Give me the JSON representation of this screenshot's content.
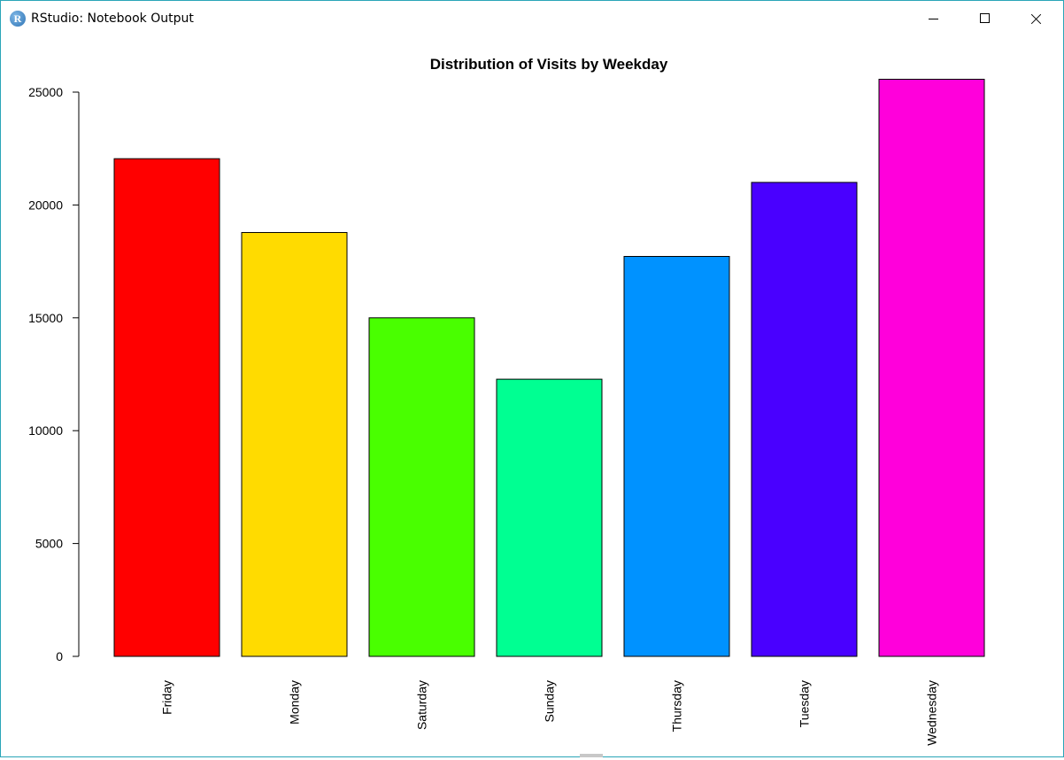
{
  "window": {
    "title": "RStudio: Notebook Output",
    "app_icon_letter": "R"
  },
  "chart_data": {
    "type": "bar",
    "title": "Distribution of Visits by Weekday",
    "xlabel": "",
    "ylabel": "",
    "categories": [
      "Friday",
      "Monday",
      "Saturday",
      "Sunday",
      "Thursday",
      "Tuesday",
      "Wednesday"
    ],
    "values": [
      22050,
      18780,
      15000,
      12280,
      17720,
      21000,
      25570
    ],
    "colors": [
      "#ff0000",
      "#ffdb00",
      "#49ff00",
      "#00ff92",
      "#0092ff",
      "#4900ff",
      "#ff00db"
    ],
    "ylim": [
      0,
      25000
    ],
    "yticks": [
      0,
      5000,
      10000,
      15000,
      20000,
      25000
    ],
    "ytick_labels": [
      "0",
      "5000",
      "10000",
      "15000",
      "20000",
      "25000"
    ],
    "grid": false,
    "legend": "none"
  }
}
